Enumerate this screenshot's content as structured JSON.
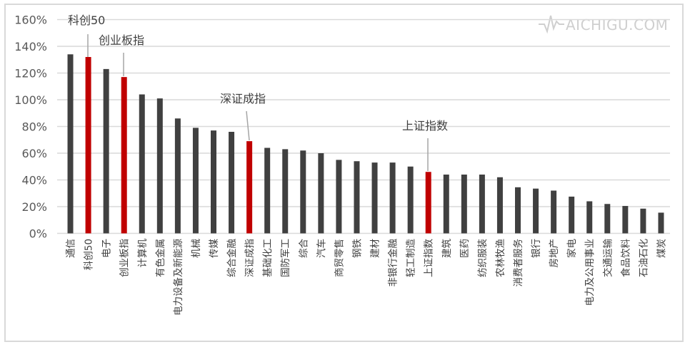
{
  "watermark": {
    "text": "AICHIGU.COM",
    "icon": "heartbeat-pulse-icon"
  },
  "colors": {
    "bar_default": "#404040",
    "bar_highlight": "#c00000",
    "grid": "#d9d9d9",
    "axis_text": "#595959",
    "leader": "#a6a6a6"
  },
  "chart_data": {
    "type": "bar",
    "title": "",
    "xlabel": "",
    "ylabel": "",
    "ylim": [
      0,
      160
    ],
    "yticks": [
      "0%",
      "20%",
      "40%",
      "60%",
      "80%",
      "100%",
      "120%",
      "140%",
      "160%"
    ],
    "grid": true,
    "legend": null,
    "categories": [
      "通信",
      "科创50",
      "电子",
      "创业板指",
      "计算机",
      "有色金属",
      "电力设备及新能源",
      "机械",
      "传媒",
      "综合金融",
      "深证成指",
      "基础化工",
      "国防军工",
      "综合",
      "汽车",
      "商贸零售",
      "钢铁",
      "建材",
      "非银行金融",
      "轻工制造",
      "上证指数",
      "建筑",
      "医药",
      "纺织服装",
      "农林牧渔",
      "消费者服务",
      "银行",
      "房地产",
      "家电",
      "电力及公用事业",
      "交通运输",
      "食品饮料",
      "石油石化",
      "煤炭"
    ],
    "values": [
      134,
      132,
      123,
      117,
      104,
      101,
      86,
      79,
      77,
      76,
      69,
      64,
      63,
      62,
      60,
      55,
      54,
      53,
      53,
      50,
      46,
      44,
      44,
      44,
      42,
      34.5,
      33.5,
      32,
      27.5,
      24,
      22,
      20.5,
      18.5,
      15.5
    ],
    "unit": "%",
    "highlighted": [
      "科创50",
      "创业板指",
      "深证成指",
      "上证指数"
    ],
    "annotations": [
      {
        "text": "科创50",
        "target": "科创50"
      },
      {
        "text": "创业板指",
        "target": "创业板指"
      },
      {
        "text": "深证成指",
        "target": "深证成指"
      },
      {
        "text": "上证指数",
        "target": "上证指数"
      }
    ]
  }
}
